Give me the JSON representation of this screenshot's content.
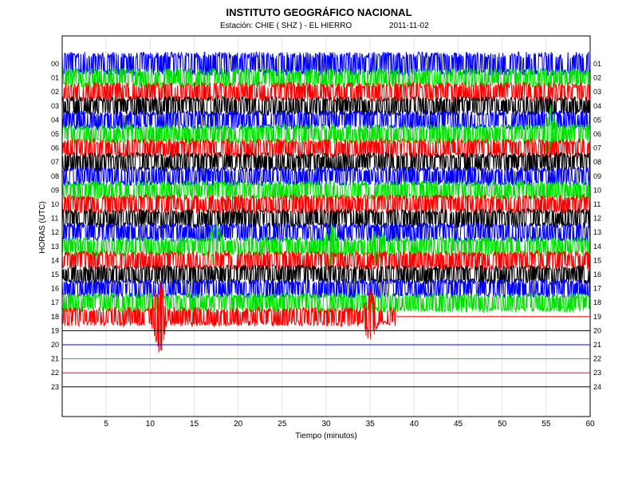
{
  "chart_data": {
    "type": "line",
    "title": "INSTITUTO GEOGRÁFICO NACIONAL",
    "station_label": "Estación:  CHIE ( SHZ ) - EL HIERRO",
    "date": "2011-11-02",
    "xlabel": "Tiempo (minutos)",
    "ylabel": "HORAS (UTC)",
    "xlim": [
      0,
      60
    ],
    "x_ticks": [
      5,
      10,
      15,
      20,
      25,
      30,
      35,
      40,
      45,
      50,
      55,
      60
    ],
    "grid": true,
    "left_labels": [
      "00",
      "01",
      "02",
      "03",
      "04",
      "05",
      "06",
      "07",
      "08",
      "09",
      "10",
      "11",
      "12",
      "13",
      "14",
      "15",
      "16",
      "17",
      "18",
      "19",
      "20",
      "21",
      "22",
      "23"
    ],
    "right_labels": [
      "01",
      "02",
      "03",
      "04",
      "05",
      "06",
      "07",
      "08",
      "09",
      "10",
      "11",
      "12",
      "13",
      "14",
      "15",
      "16",
      "17",
      "18",
      "19",
      "20",
      "21",
      "22",
      "23",
      "24"
    ],
    "trace_colors": [
      "#0000ff",
      "#00e000",
      "#ff0000",
      "#000000"
    ],
    "recording_end_minute": 38,
    "events": [
      {
        "hour": 5,
        "minute": 55.5,
        "amplitude": 2.2
      },
      {
        "hour": 13,
        "minute": 17.5,
        "amplitude": 2.0
      },
      {
        "hour": 13,
        "minute": 30.5,
        "amplitude": 1.6
      },
      {
        "hour": 13,
        "minute": 36,
        "amplitude": 1.4
      },
      {
        "hour": 18,
        "minute": 11,
        "amplitude": 4.0
      },
      {
        "hour": 18,
        "minute": 35,
        "amplitude": 2.3
      }
    ]
  }
}
